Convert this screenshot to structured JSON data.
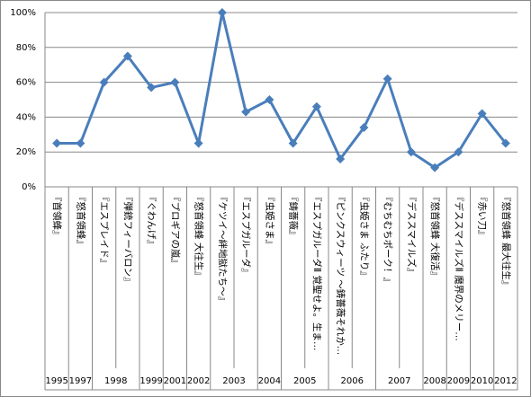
{
  "chart_data": {
    "type": "line",
    "categories": [
      "『首領蜂』",
      "『怒首領蜂』",
      "『エスプレイド』",
      "『弾銃フィーバロン』",
      "『ぐわんげ』",
      "『プロギアの嵐』",
      "『怒首領蜂 大往生』",
      "『ケツイ～絆地獄たち～』",
      "『エスプガルーダ』",
      "『虫姫さま』",
      "『鋳薔薇』",
      "『エスプガルーダⅡ 覚聖せよ。生ま…",
      "『ピンクスウィーツ ～鋳薔薇それか…",
      "『虫姫さま ふたり』",
      "『むちむちポーク！』",
      "『デススマイルズ』",
      "『怒首領蜂 大復活』",
      "『デススマイルズⅡ 魔界のメリー…",
      "『赤い刀』",
      "『怒首領蜂 最大往生』"
    ],
    "years": [
      "1995",
      "1997",
      "1998",
      null,
      "1999",
      "2001",
      "2002",
      "2003",
      null,
      "2004",
      "2005",
      null,
      "2006",
      null,
      "2007",
      null,
      "2008",
      "2009",
      "2010",
      "2012"
    ],
    "values": [
      25,
      25,
      60,
      75,
      57,
      60,
      25,
      100,
      43,
      50,
      25,
      46,
      16,
      34,
      62,
      20,
      11,
      20,
      42,
      25
    ],
    "color": "#4a7ebb",
    "ylim": [
      0,
      100
    ],
    "yticks": [
      {
        "value": 0,
        "label": "0%"
      },
      {
        "value": 20,
        "label": "20%"
      },
      {
        "value": 40,
        "label": "40%"
      },
      {
        "value": 60,
        "label": "60%"
      },
      {
        "value": 80,
        "label": "80%"
      },
      {
        "value": 100,
        "label": "100%"
      }
    ],
    "grid": true
  }
}
